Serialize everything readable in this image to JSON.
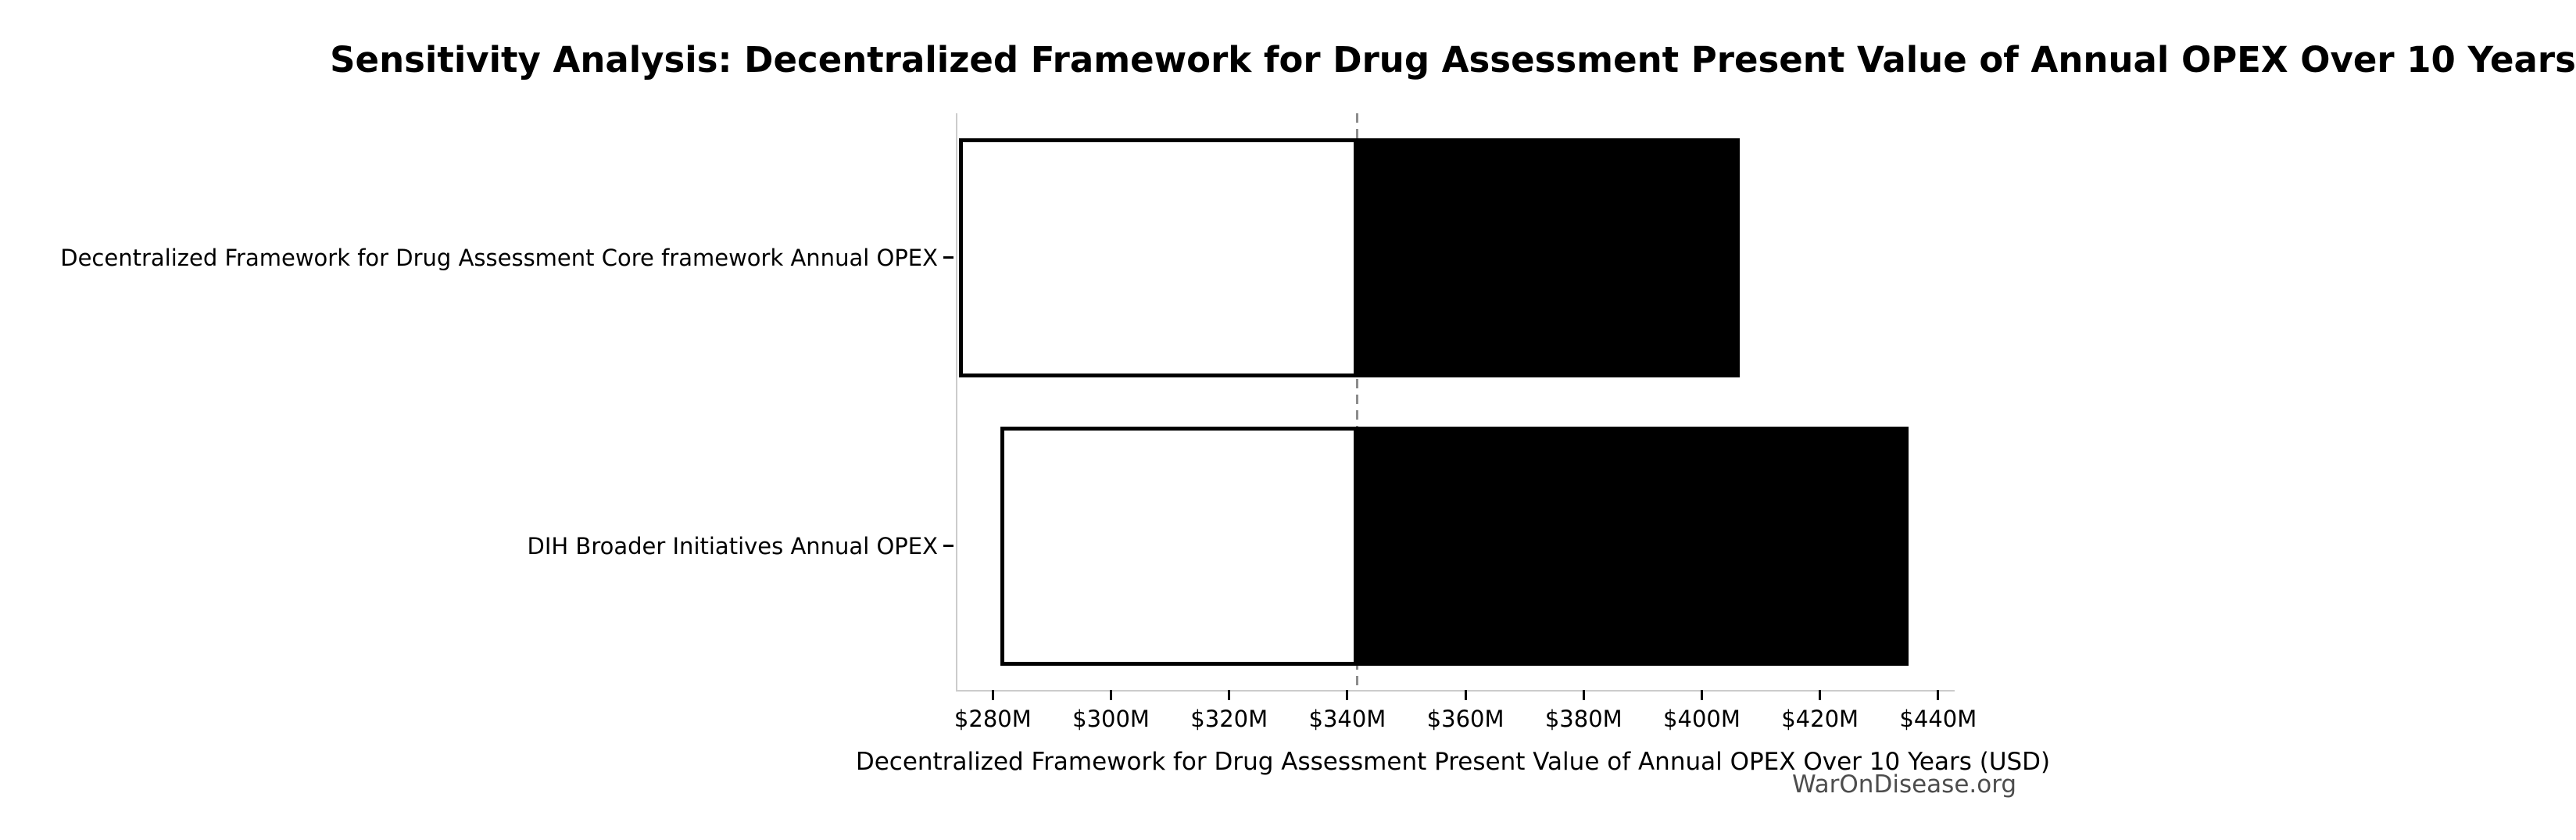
{
  "watermark": "WarOnDisease.org",
  "chart_data": {
    "type": "bar",
    "subtype": "tornado-sensitivity",
    "orientation": "horizontal",
    "title": "Sensitivity Analysis: Decentralized Framework for Drug Assessment Present Value of Annual OPEX Over 10 Years",
    "xlabel": "Decentralized Framework for Drug Assessment Present Value of Annual OPEX Over 10 Years (USD)",
    "unit": "USD millions",
    "categories": [
      "Decentralized Framework for Drug Assessment Core framework Annual OPEX",
      "DIH Broader Initiatives Annual OPEX"
    ],
    "baseline_value": 341.7,
    "series": [
      {
        "name": "low",
        "values": [
          274.3,
          281.3
        ]
      },
      {
        "name": "high",
        "values": [
          406.4,
          435.0
        ]
      }
    ],
    "xlim": [
      274.0,
      442.8
    ],
    "x_tick_values": [
      280,
      300,
      320,
      340,
      360,
      380,
      400,
      420,
      440
    ],
    "x_tick_labels": [
      "$280M",
      "$300M",
      "$320M",
      "$340M",
      "$360M",
      "$380M",
      "$400M",
      "$420M",
      "$440M"
    ],
    "grid": false,
    "legend": "none",
    "colors": {
      "low_fill": "#ffffff",
      "high_fill": "#000000",
      "bar_edge": "#000000",
      "baseline_line": "#8c8c8c",
      "spine": "#cccccc",
      "tick": "#000000",
      "text": "#000000",
      "watermark": "#4d4d4d"
    }
  }
}
